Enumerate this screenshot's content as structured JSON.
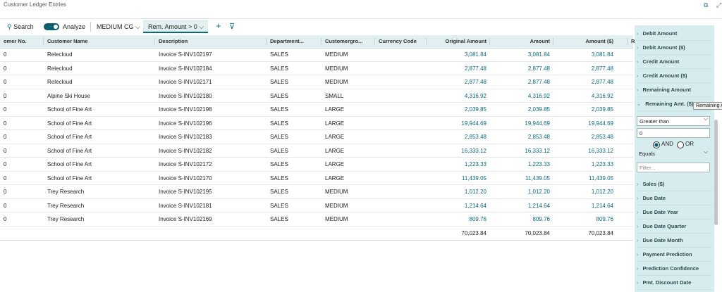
{
  "header": {
    "title": "Customer Ledger Entries"
  },
  "toolbar": {
    "search": "Search",
    "analyze": "Analyze",
    "tabs": [
      "MEDIUM CG",
      "Rem. Amount > 0"
    ]
  },
  "table": {
    "columns": [
      "omer No.",
      "Customer Name",
      "Description",
      "Department...",
      "Customergro...",
      "Currency Code",
      "Original Amount",
      "Amount",
      "Amount ($)",
      "R"
    ],
    "rows": [
      [
        "0",
        "Relecloud",
        "Invoice S-INV102197",
        "SALES",
        "MEDIUM",
        "3,081.84",
        "3,081.84",
        "3,081.84"
      ],
      [
        "0",
        "Relecloud",
        "Invoice S-INV102184",
        "SALES",
        "MEDIUM",
        "2,877.48",
        "2,877.48",
        "2,877.48"
      ],
      [
        "0",
        "Relecloud",
        "Invoice S-INV102171",
        "SALES",
        "MEDIUM",
        "2,877.48",
        "2,877.48",
        "2,877.48"
      ],
      [
        "0",
        "Alpine Ski House",
        "Invoice S-INV102180",
        "SALES",
        "SMALL",
        "4,316.92",
        "4,316.92",
        "4,316.92"
      ],
      [
        "0",
        "School of Fine Art",
        "Invoice S-INV102198",
        "SALES",
        "LARGE",
        "2,039.85",
        "2,039.85",
        "2,039.85"
      ],
      [
        "0",
        "School of Fine Art",
        "Invoice S-INV102196",
        "SALES",
        "LARGE",
        "19,944.69",
        "19,944.69",
        "19,944.69"
      ],
      [
        "0",
        "School of Fine Art",
        "Invoice S-INV102183",
        "SALES",
        "LARGE",
        "2,853.48",
        "2,853.48",
        "2,853.48"
      ],
      [
        "0",
        "School of Fine Art",
        "Invoice S-INV102182",
        "SALES",
        "LARGE",
        "16,333.12",
        "16,333.12",
        "16,333.12"
      ],
      [
        "0",
        "School of Fine Art",
        "Invoice S-INV102172",
        "SALES",
        "LARGE",
        "1,223.33",
        "1,223.33",
        "1,223.33"
      ],
      [
        "0",
        "School of Fine Art",
        "Invoice S-INV102170",
        "SALES",
        "LARGE",
        "11,439.05",
        "11,439.05",
        "11,439.05"
      ],
      [
        "0",
        "Trey Research",
        "Invoice S-INV102195",
        "SALES",
        "MEDIUM",
        "1,012.20",
        "1,012.20",
        "1,012.20"
      ],
      [
        "0",
        "Trey Research",
        "Invoice S-INV102181",
        "SALES",
        "MEDIUM",
        "1,214.64",
        "1,214.64",
        "1,214.64"
      ],
      [
        "0",
        "Trey Research",
        "Invoice S-INV102169",
        "SALES",
        "MEDIUM",
        "809.76",
        "809.76",
        "809.76"
      ]
    ],
    "totals": [
      "70,023.84",
      "70,023.84",
      "70,023.84"
    ]
  },
  "pane": {
    "items_top": [
      "Debit Amount",
      "Debit Amount ($)",
      "Credit Amount",
      "Credit Amount ($)",
      "Remaining Amount"
    ],
    "expanded": "Remaining Amt. ($)",
    "tooltip": "Remaining A",
    "filter": {
      "operator": "Greater than",
      "value": "0",
      "and": "AND",
      "or": "OR",
      "operator2": "Equals",
      "placeholder": "Filter..."
    },
    "items_bottom": [
      "Sales ($)",
      "Due Date",
      "Due Date Year",
      "Due Date Quarter",
      "Due Date Month",
      "Payment Prediction",
      "Prediction Confidence",
      "Pmt. Discount Date"
    ]
  }
}
